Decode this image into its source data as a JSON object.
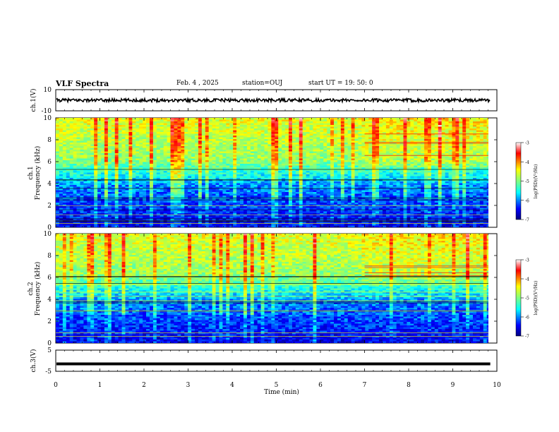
{
  "header": {
    "title": "VLF Spectra",
    "date": "Feb. 4 , 2025",
    "station": "station=OUJ",
    "start": "start UT =  19: 50: 0"
  },
  "colors": {
    "colormap": [
      "#00007f",
      "#0000ff",
      "#0080ff",
      "#00ffff",
      "#80ff80",
      "#ffff00",
      "#ff8000",
      "#ff0000",
      "#ffffff"
    ],
    "waveform": "#000000"
  },
  "chart_data": [
    {
      "type": "line",
      "ylabel": "ch.1(V)",
      "ylim": [
        -10,
        10
      ],
      "yticks": [
        "10",
        "-10"
      ],
      "description_values": {
        "mean": 0,
        "amplitude": 1.5
      }
    },
    {
      "type": "heatmap",
      "ylabel": "ch.1\nFrequency (kHz)",
      "ylabel_lines": [
        "ch.1",
        "Frequency (kHz)"
      ],
      "ylim": [
        0,
        10
      ],
      "yticks": [
        "0",
        "2",
        "4",
        "6",
        "8",
        "10"
      ],
      "colorbar": {
        "label": "log(PSD)(V²/Hz)",
        "range": [
          -7,
          -3
        ],
        "ticks": [
          "-3",
          "-4",
          "-5",
          "-6",
          "-7"
        ]
      }
    },
    {
      "type": "heatmap",
      "ylabel_lines": [
        "ch.2",
        "Frequency (kHz)"
      ],
      "ylim": [
        0,
        10
      ],
      "yticks": [
        "0",
        "2",
        "4",
        "6",
        "8",
        "10"
      ],
      "colorbar": {
        "label": "log(PSD)(V²/Hz)",
        "range": [
          -7,
          -3
        ],
        "ticks": [
          "-3",
          "-4",
          "-5",
          "-6",
          "-7"
        ]
      }
    },
    {
      "type": "line",
      "ylabel": "ch.3(V)",
      "ylim": [
        -5,
        5
      ],
      "yticks": [
        "5",
        "-5"
      ],
      "series": [
        {
          "values": [
            -1.5,
            -1.5
          ]
        }
      ]
    }
  ],
  "xaxis": {
    "label": "Time (min)",
    "range": [
      0,
      10
    ],
    "ticks": [
      "0",
      "1",
      "2",
      "3",
      "4",
      "5",
      "6",
      "7",
      "8",
      "9",
      "10"
    ],
    "data_end": 9.85
  }
}
